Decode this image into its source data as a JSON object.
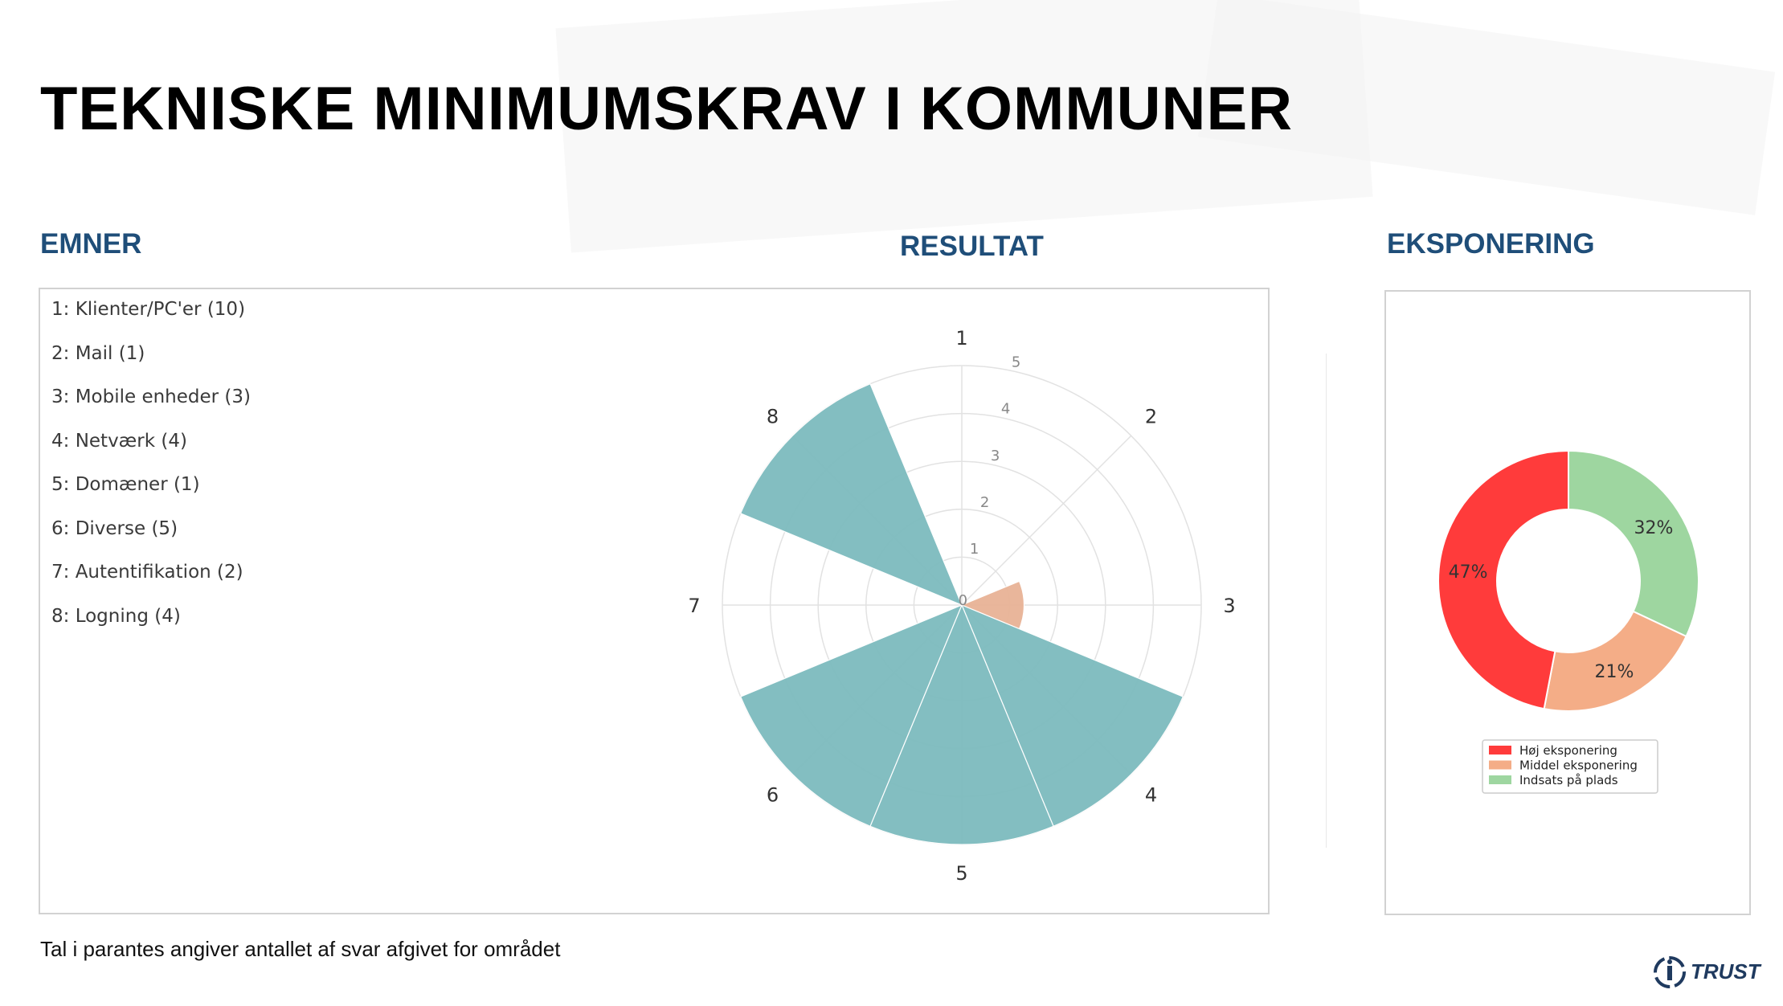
{
  "title": "TEKNISKE MINIMUMSKRAV I KOMMUNER",
  "sections": {
    "emner": "EMNER",
    "resultat": "RESULTAT",
    "eksponering": "EKSPONERING"
  },
  "topics": [
    "1: Klienter/PC'er (10)",
    "2: Mail (1)",
    "3: Mobile enheder (3)",
    "4: Netværk (4)",
    "5: Domæner (1)",
    "6: Diverse (5)",
    "7: Autentifikation (2)",
    "8: Logning (4)"
  ],
  "footnote": "Tal i parantes angiver antallet af svar afgivet for området",
  "logo_text": "TRUST",
  "chart_data": [
    {
      "type": "polar-bar",
      "categories": [
        "1",
        "2",
        "3",
        "4",
        "5",
        "6",
        "7",
        "8"
      ],
      "values": [
        0,
        0,
        1.3,
        5,
        5,
        5,
        0,
        5
      ],
      "bar_colors": [
        "#7fbcbf",
        "#7fbcbf",
        "#e9b498",
        "#7fbcbf",
        "#7fbcbf",
        "#7fbcbf",
        "#7fbcbf",
        "#7fbcbf"
      ],
      "rlim": [
        0,
        5
      ],
      "r_ticks": [
        0,
        1,
        2,
        3,
        4,
        5
      ],
      "grid": true
    },
    {
      "type": "pie",
      "donut": true,
      "labels": [
        "Høj eksponering",
        "Middel eksponering",
        "Indsats på plads"
      ],
      "values": [
        47,
        21,
        32
      ],
      "display_labels": [
        "47%",
        "21%",
        "32%"
      ],
      "colors": [
        "#ff3b3b",
        "#f4ad87",
        "#9ed6a0"
      ],
      "legend": "bottom"
    }
  ]
}
